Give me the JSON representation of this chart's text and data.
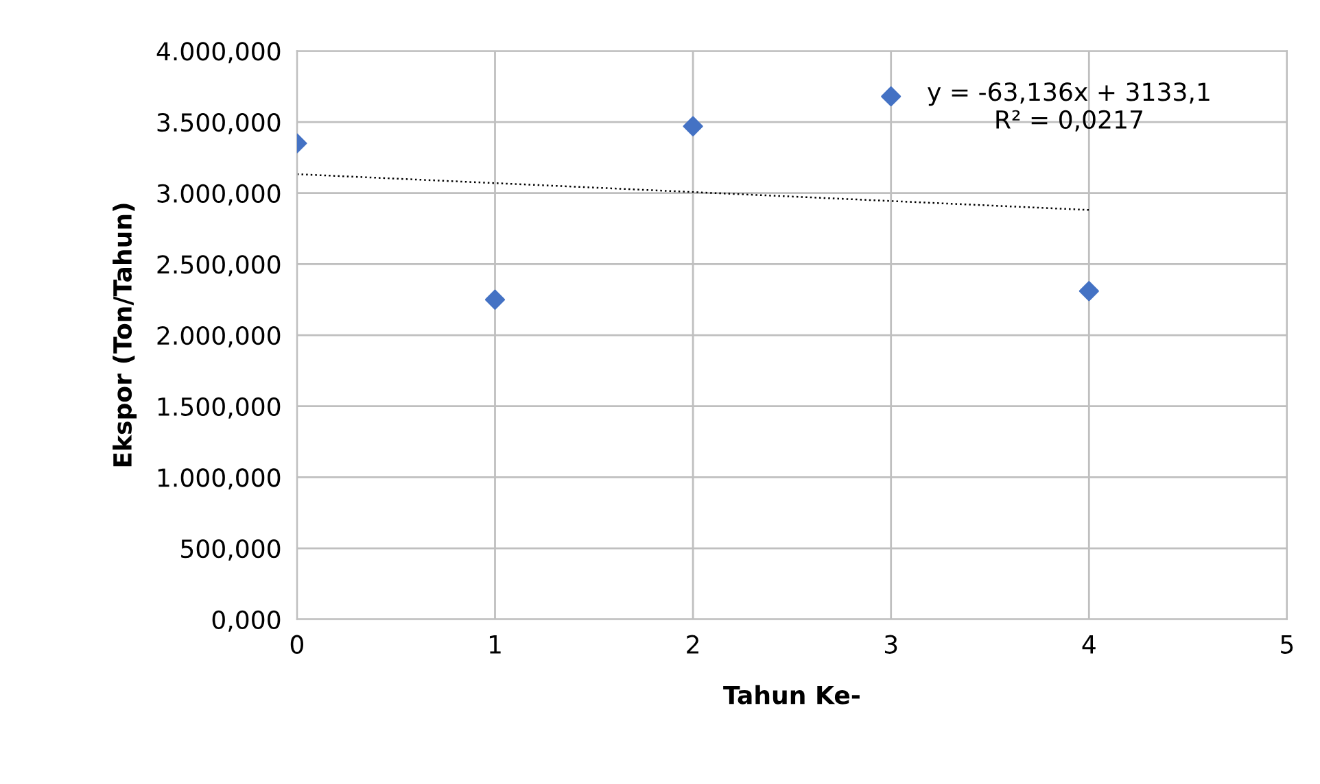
{
  "chart_data": {
    "type": "scatter",
    "xlabel": "Tahun Ke-",
    "ylabel": "Ekspor (Ton/Tahun)",
    "xlim": [
      0,
      5
    ],
    "xticks": [
      0,
      1,
      2,
      3,
      4,
      5
    ],
    "ylim": [
      0,
      4000
    ],
    "yticks": [
      {
        "value": 0,
        "label": "0,000"
      },
      {
        "value": 500,
        "label": "500,000"
      },
      {
        "value": 1000,
        "label": "1.000,000"
      },
      {
        "value": 1500,
        "label": "1.500,000"
      },
      {
        "value": 2000,
        "label": "2.000,000"
      },
      {
        "value": 2500,
        "label": "2.500,000"
      },
      {
        "value": 3000,
        "label": "3.000,000"
      },
      {
        "value": 3500,
        "label": "3.500,000"
      },
      {
        "value": 4000,
        "label": "4.000,000"
      }
    ],
    "grid": true,
    "legend": false,
    "series": [
      {
        "marker": "diamond",
        "color": "#4472c4",
        "x": [
          0,
          1,
          2,
          3,
          4
        ],
        "values": [
          3350,
          2250,
          3470,
          3680,
          2310
        ]
      },
      {
        "type": "line",
        "color": "#000000",
        "line_style": "dotted",
        "x": [
          0,
          4
        ],
        "values": [
          3133,
          2881
        ]
      }
    ],
    "annotations": [
      "y = -63,136x + 3133,1\nR² = 0,0217"
    ]
  }
}
